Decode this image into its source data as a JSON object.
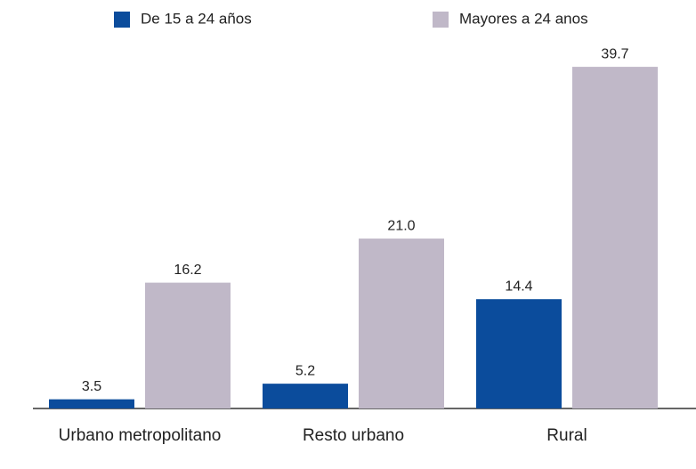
{
  "chart_data": {
    "type": "bar",
    "categories": [
      "Urbano metropolitano",
      "Resto urbano",
      "Rural"
    ],
    "series": [
      {
        "name": "De 15 a 24 años",
        "color": "#0b4c9c",
        "values": [
          3.5,
          5.2,
          14.4
        ],
        "value_labels": [
          "3.5",
          "5.2",
          "14.4"
        ]
      },
      {
        "name": "Mayores a 24 anos",
        "color": "#c0b8c8",
        "values": [
          16.2,
          21,
          39.7
        ],
        "value_labels": [
          "16.2",
          "21.0",
          "39.7"
        ]
      }
    ],
    "ylim": [
      2.5,
      40
    ]
  }
}
